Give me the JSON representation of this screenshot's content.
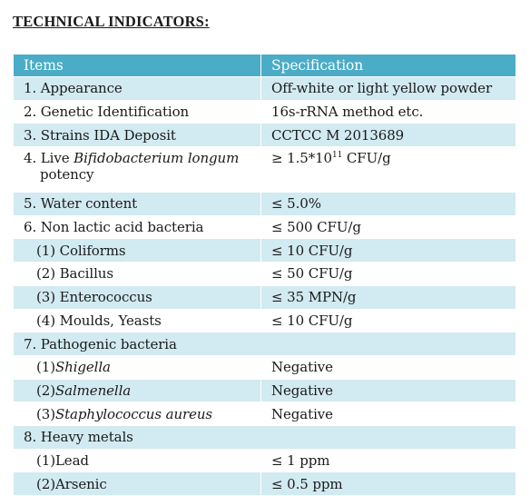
{
  "title": "TECHNICAL INDICATORS:",
  "header": {
    "col1": "Items",
    "col2": "Specification"
  },
  "rows": {
    "r1": {
      "item": "1. Appearance",
      "spec": "Off-white or light yellow powder"
    },
    "r2": {
      "item": "2. Genetic Identification",
      "spec": "16s-rRNA method etc."
    },
    "r3": {
      "item": "3. Strains IDA Deposit",
      "spec": "CCTCC M 2013689"
    },
    "r4": {
      "item_prefix": "4. Live ",
      "item_italic": "Bifidobacterium longum",
      "item_cont": "potency",
      "spec_base": "≥ 1.5*10",
      "spec_exp": "11",
      "spec_unit": " CFU/g"
    },
    "r5": {
      "item": "5. Water content",
      "spec": "≤ 5.0%"
    },
    "r6": {
      "item": "6. Non lactic acid bacteria",
      "spec": "≤ 500 CFU/g"
    },
    "r6a": {
      "item": "(1) Coliforms",
      "spec": "≤ 10 CFU/g"
    },
    "r6b": {
      "item": "(2) Bacillus",
      "spec": "≤ 50 CFU/g"
    },
    "r6c": {
      "item": "(3) Enterococcus",
      "spec": "≤ 35 MPN/g"
    },
    "r6d": {
      "item": "(4) Moulds, Yeasts",
      "spec": "≤ 10 CFU/g"
    },
    "r7": {
      "item": "7. Pathogenic bacteria",
      "spec": ""
    },
    "r7a": {
      "item_prefix": "(1)",
      "item_italic": "Shigella",
      "spec": "Negative"
    },
    "r7b": {
      "item_prefix": "(2)",
      "item_italic": "Salmenella",
      "spec": "Negative"
    },
    "r7c": {
      "item_prefix": "(3)",
      "item_italic": "Staphylococcus aureus",
      "spec": "Negative"
    },
    "r8": {
      "item": "8. Heavy metals",
      "spec": ""
    },
    "r8a": {
      "item": "(1)Lead",
      "spec": "≤ 1 ppm"
    },
    "r8b": {
      "item": "(2)Arsenic",
      "spec": "≤ 0.5 ppm"
    }
  },
  "colors": {
    "header_bg": "#4aacc6",
    "band_bg": "#d2eaf1"
  }
}
